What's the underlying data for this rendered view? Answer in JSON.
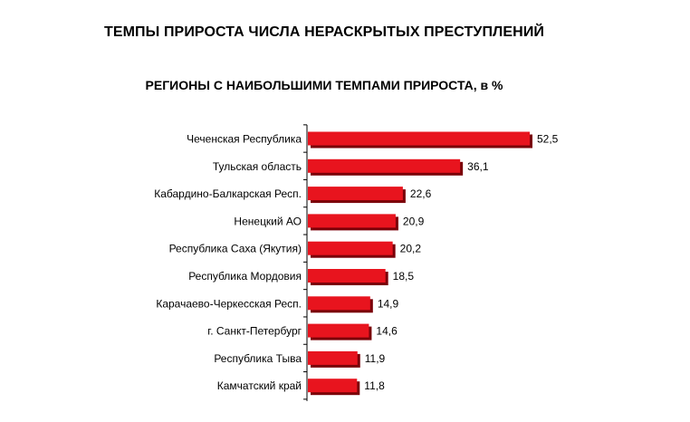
{
  "title": "ТЕМПЫ ПРИРОСТА ЧИСЛА НЕРАСКРЫТЫХ ПРЕСТУПЛЕНИЙ",
  "subtitle": "РЕГИОНЫ С НАИБОЛЬШИМИ ТЕМПАМИ ПРИРОСТА, в %",
  "colors": {
    "bar_fill": "#e8141e",
    "bar_shadow": "#7a0008",
    "axis": "#000000"
  },
  "chart_data": {
    "type": "bar",
    "orientation": "horizontal",
    "title": "ТЕМПЫ ПРИРОСТА ЧИСЛА НЕРАСКРЫТЫХ ПРЕСТУПЛЕНИЙ",
    "subtitle": "РЕГИОНЫ С НАИБОЛЬШИМИ ТЕМПАМИ ПРИРОСТА, в %",
    "categories": [
      "Чеченская Республика",
      "Тульская область",
      "Кабардино-Балкарская Респ.",
      "Ненецкий АО",
      "Республика Саха (Якутия)",
      "Республика Мордовия",
      "Карачаево-Черкесская Респ.",
      "г. Санкт-Петербург",
      "Республика Тыва",
      "Камчатский край"
    ],
    "values": [
      52.5,
      36.1,
      22.6,
      20.9,
      20.2,
      18.5,
      14.9,
      14.6,
      11.9,
      11.8
    ],
    "value_labels": [
      "52,5",
      "36,1",
      "22,6",
      "20,9",
      "20,2",
      "18,5",
      "14,9",
      "14,6",
      "11,9",
      "11,8"
    ],
    "xlim": [
      0,
      52.5
    ],
    "grid": false,
    "legend": "none",
    "xlabel": "",
    "ylabel": ""
  }
}
